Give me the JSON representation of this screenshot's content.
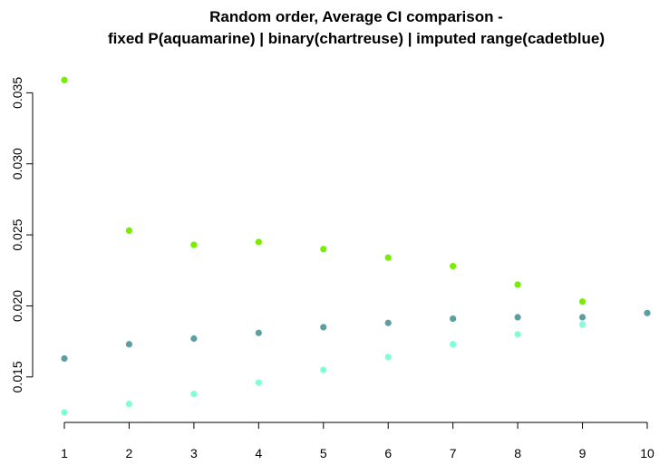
{
  "chart_data": {
    "type": "scatter",
    "title_lines": [
      "Random order, Average CI comparison -",
      "fixed P(aquamarine) | binary(chartreuse) | imputed range(cadetblue)"
    ],
    "xlabel": "",
    "ylabel": "",
    "xlim": [
      1,
      10
    ],
    "ylim": [
      0.0125,
      0.0363
    ],
    "x_ticks": [
      1,
      2,
      3,
      4,
      5,
      6,
      7,
      8,
      9,
      10
    ],
    "y_ticks": [
      {
        "value": 0.015,
        "label": "0.015"
      },
      {
        "value": 0.02,
        "label": "0.020"
      },
      {
        "value": 0.025,
        "label": "0.025"
      },
      {
        "value": 0.03,
        "label": "0.030"
      },
      {
        "value": 0.035,
        "label": "0.035"
      }
    ],
    "grid": false,
    "legend": "none",
    "series": [
      {
        "color": "#76EE00",
        "x": [
          1,
          2,
          3,
          4,
          5,
          6,
          7,
          8,
          9
        ],
        "y": [
          0.0359,
          0.0253,
          0.0243,
          0.0245,
          0.024,
          0.0234,
          0.0228,
          0.0215,
          0.0203
        ]
      },
      {
        "color": "#5F9EA0",
        "x": [
          1,
          2,
          3,
          4,
          5,
          6,
          7,
          8,
          9,
          10
        ],
        "y": [
          0.0163,
          0.0173,
          0.0177,
          0.0181,
          0.0185,
          0.0188,
          0.0191,
          0.0192,
          0.0192,
          0.0195
        ]
      },
      {
        "color": "#7FFFD4",
        "x": [
          1,
          2,
          3,
          4,
          5,
          6,
          7,
          8,
          9
        ],
        "y": [
          0.0125,
          0.0131,
          0.0138,
          0.0146,
          0.0155,
          0.0164,
          0.0173,
          0.018,
          0.0187
        ]
      }
    ]
  }
}
